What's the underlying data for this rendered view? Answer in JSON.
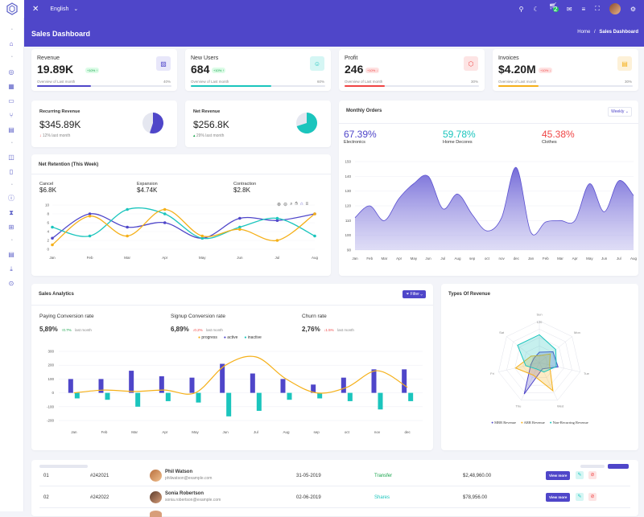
{
  "topbar": {
    "language": "English",
    "cart_count": "2"
  },
  "page": {
    "title": "Sales Dashboard",
    "breadcrumb_home": "Home",
    "breadcrumb_sep": "/",
    "breadcrumb_current": "Sales Dashboard"
  },
  "kpis": [
    {
      "label": "Revenue",
      "value": "19.89K",
      "badge": "+10% ↑",
      "sub": "Overview of Last month",
      "pct": "40%",
      "progress": 0.4,
      "color": "#4f46c9",
      "icon": "image-icon"
    },
    {
      "label": "New Users",
      "value": "684",
      "badge": "+10% ↑",
      "sub": "Overview of Last month",
      "pct": "60%",
      "progress": 0.6,
      "color": "#1bc5bd",
      "icon": "user-icon"
    },
    {
      "label": "Profit",
      "value": "246",
      "badge": "+10% ↓",
      "sub": "Overview of Last month",
      "pct": "30%",
      "progress": 0.3,
      "color": "#ef4444",
      "icon": "cube-icon"
    },
    {
      "label": "Invoices",
      "value": "$4.20M",
      "badge": "+10% ↓",
      "sub": "Overview of Last month",
      "pct": "30%",
      "progress": 0.3,
      "color": "#f5b019",
      "icon": "invoice-icon"
    }
  ],
  "recurring": {
    "label": "Recurring Revenue",
    "value": "$345.89K",
    "trend": "12% last month",
    "share": 0.55
  },
  "net_revenue": {
    "label": "Net Revenue",
    "value": "$256.8K",
    "trend": "29% last month",
    "share": 0.7
  },
  "monthly_orders": {
    "title": "Monthly Orders",
    "period": "Weekly",
    "stats": [
      {
        "value": "67.39%",
        "label": "Electronics",
        "color": "#4f46c9"
      },
      {
        "value": "59.78%",
        "label": "Home Decores",
        "color": "#1bc5bd"
      },
      {
        "value": "45.38%",
        "label": "Clothes",
        "color": "#ef4444"
      }
    ]
  },
  "net_retention": {
    "title": "Net Retention (This Week)",
    "stats": [
      {
        "label": "Cancel",
        "value": "$6.8K"
      },
      {
        "label": "Expansion",
        "value": "$4.74K"
      },
      {
        "label": "Contraction",
        "value": "$2.8K"
      }
    ]
  },
  "sales_analytics": {
    "title": "Sales Analytics",
    "filter": "Filter",
    "stats": [
      {
        "label": "Paying Conversion rate",
        "value": "5,89%",
        "change": "0.7%",
        "suffix": "last month",
        "up": true
      },
      {
        "label": "Signup Conversion rate",
        "value": "6,89%",
        "change": "0.2%",
        "suffix": "last month",
        "up": false
      },
      {
        "label": "Churn rate",
        "value": "2,76%",
        "change": "1.5%",
        "suffix": "last month",
        "up": false
      }
    ]
  },
  "types_of_revenue": {
    "title": "Types Of Revenue"
  },
  "chart_data": [
    {
      "type": "line",
      "categories": [
        "Jan",
        "Feb",
        "Mar",
        "Apr",
        "May",
        "Jun",
        "Jul",
        "Aug"
      ],
      "ylim": [
        0,
        10
      ],
      "yticks": [
        "0",
        "2",
        "4",
        "6",
        "8",
        "10"
      ],
      "series": [
        {
          "color": "#4f46c9",
          "values": [
            2.5,
            8,
            5,
            6,
            2.5,
            7,
            6.5,
            8
          ]
        },
        {
          "color": "#1bc5bd",
          "values": [
            5,
            3,
            9,
            8,
            2.5,
            5,
            7,
            3
          ]
        },
        {
          "color": "#f5b019",
          "values": [
            1,
            7.5,
            3,
            9,
            3,
            4.5,
            2,
            8
          ]
        }
      ]
    },
    {
      "type": "area",
      "categories": [
        "Jan",
        "Feb",
        "Mar",
        "Apr",
        "May",
        "Jun",
        "Jul",
        "Aug",
        "sep",
        "oct",
        "nov",
        "dec",
        "Jan",
        "Feb",
        "Mar",
        "Apr",
        "May",
        "Jun",
        "Jul",
        "Aug"
      ],
      "ylim": [
        90,
        150
      ],
      "yticks": [
        "90",
        "100",
        "110",
        "120",
        "130",
        "140",
        "150"
      ],
      "values": [
        112,
        120,
        110,
        125,
        135,
        140,
        118,
        128,
        114,
        103,
        112,
        146,
        102,
        109,
        110,
        110,
        135,
        116,
        137,
        127
      ]
    },
    {
      "type": "bar",
      "categories": [
        "Jan",
        "Feb",
        "Mar",
        "Apr",
        "May",
        "Jun",
        "Jul",
        "Aug",
        "sep",
        "oct",
        "nov",
        "dec"
      ],
      "ylim": [
        -200,
        300
      ],
      "yticks": [
        "300",
        "200",
        "100",
        "0",
        "-100",
        "-200"
      ],
      "legend": [
        "progress",
        "active",
        "inactive"
      ],
      "series": [
        {
          "name": "progress",
          "color": "#f5b019",
          "values": [
            0,
            20,
            10,
            20,
            0,
            200,
            260,
            100,
            0,
            40,
            160,
            40
          ]
        },
        {
          "name": "active",
          "color": "#4f46c9",
          "values": [
            100,
            100,
            160,
            120,
            110,
            210,
            140,
            100,
            60,
            110,
            170,
            170
          ]
        },
        {
          "name": "inactive",
          "color": "#1bc5bd",
          "values": [
            -40,
            -50,
            -100,
            -60,
            -70,
            -170,
            -130,
            -50,
            -40,
            -60,
            -120,
            -60
          ]
        }
      ]
    },
    {
      "type": "radar",
      "axes": [
        "Sun",
        "Mon",
        "Tue",
        "Wed",
        "Thu",
        "Fri",
        "Sat"
      ],
      "axis_top_value": "120",
      "legend": [
        "MRR Revenue",
        "ARR Revenue",
        "Non-Recurring Revenue"
      ],
      "series": [
        {
          "name": "MRR Revenue",
          "color": "#4f46c9",
          "values": [
            30,
            50,
            55,
            20,
            100,
            25,
            20
          ]
        },
        {
          "name": "ARR Revenue",
          "color": "#f5b019",
          "values": [
            20,
            40,
            30,
            90,
            40,
            70,
            30
          ]
        },
        {
          "name": "Non-Recurring Revenue",
          "color": "#1bc5bd",
          "values": [
            80,
            60,
            50,
            30,
            20,
            40,
            80
          ]
        }
      ]
    }
  ],
  "orders_table": {
    "rows": [
      {
        "num": "01",
        "id": "#242021",
        "name": "Phil Watson",
        "email": "philwatson@example.com",
        "date": "31-05-2019",
        "type": "Transfer",
        "type_color": "#16a34a",
        "amount": "$2,48,960.00",
        "action": "View more"
      },
      {
        "num": "02",
        "id": "#242022",
        "name": "Sonia Robertson",
        "email": "sonia.robertson@example.com",
        "date": "02-06-2019",
        "type": "Shares",
        "type_color": "#1bc5bd",
        "amount": "$78,956.00",
        "action": "View more"
      }
    ]
  }
}
